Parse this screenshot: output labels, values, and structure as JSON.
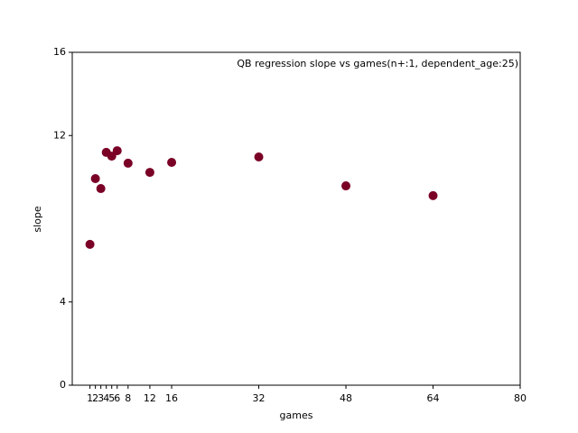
{
  "chart_data": {
    "type": "scatter",
    "title": "QB regression slope vs games(n+:1, dependent_age:25)",
    "x_label": "games",
    "y_label": "slope",
    "series": [
      {
        "color": "#7a0026",
        "x": [
          1,
          2,
          3,
          4,
          5,
          6,
          8,
          12,
          16,
          32,
          48,
          64
        ],
        "values": [
          6.77,
          9.93,
          9.45,
          11.19,
          11.01,
          11.27,
          10.67,
          10.23,
          10.71,
          10.97,
          9.58,
          9.11
        ]
      }
    ],
    "xlim": [
      -2.25,
      80
    ],
    "xticks": [
      1,
      2,
      3,
      4,
      5,
      6,
      8,
      12,
      16,
      32,
      48,
      64,
      80
    ],
    "ylim": [
      0,
      16
    ],
    "yticks": [
      0,
      4,
      12,
      16
    ]
  }
}
